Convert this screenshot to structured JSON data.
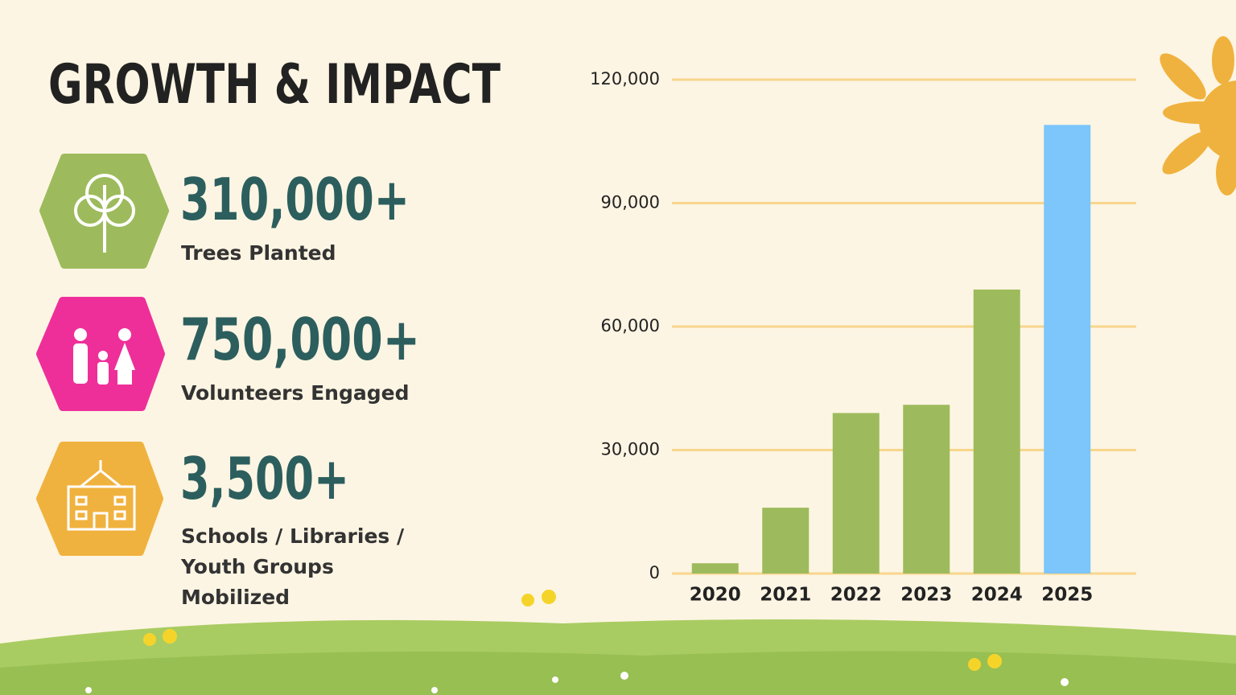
{
  "title": "GROWTH & IMPACT",
  "stats": [
    {
      "number": "310,000+",
      "label": "Trees Planted"
    },
    {
      "number": "750,000+",
      "label": "Volunteers Engaged"
    },
    {
      "number": "3,500+",
      "label": "Schools / Libraries / Youth Groups Mobilized"
    }
  ],
  "chart_data": {
    "type": "bar",
    "categories": [
      "2020",
      "2021",
      "2022",
      "2023",
      "2024",
      "2025"
    ],
    "values": [
      2500,
      16000,
      39000,
      41000,
      69000,
      109000
    ],
    "colors": [
      "#9dbb5c",
      "#9dbb5c",
      "#9dbb5c",
      "#9dbb5c",
      "#9dbb5c",
      "#7cc6fb"
    ],
    "ylim": [
      0,
      120000
    ],
    "yticks": [
      0,
      {
        "value": 30000,
        "label": "30,000"
      },
      {
        "value": 60000,
        "label": "60,000"
      },
      {
        "value": 90000,
        "label": "90,000"
      },
      {
        "value": 120000,
        "label": "120,000"
      }
    ],
    "grid": true,
    "grid_color": "#f7d68c"
  }
}
